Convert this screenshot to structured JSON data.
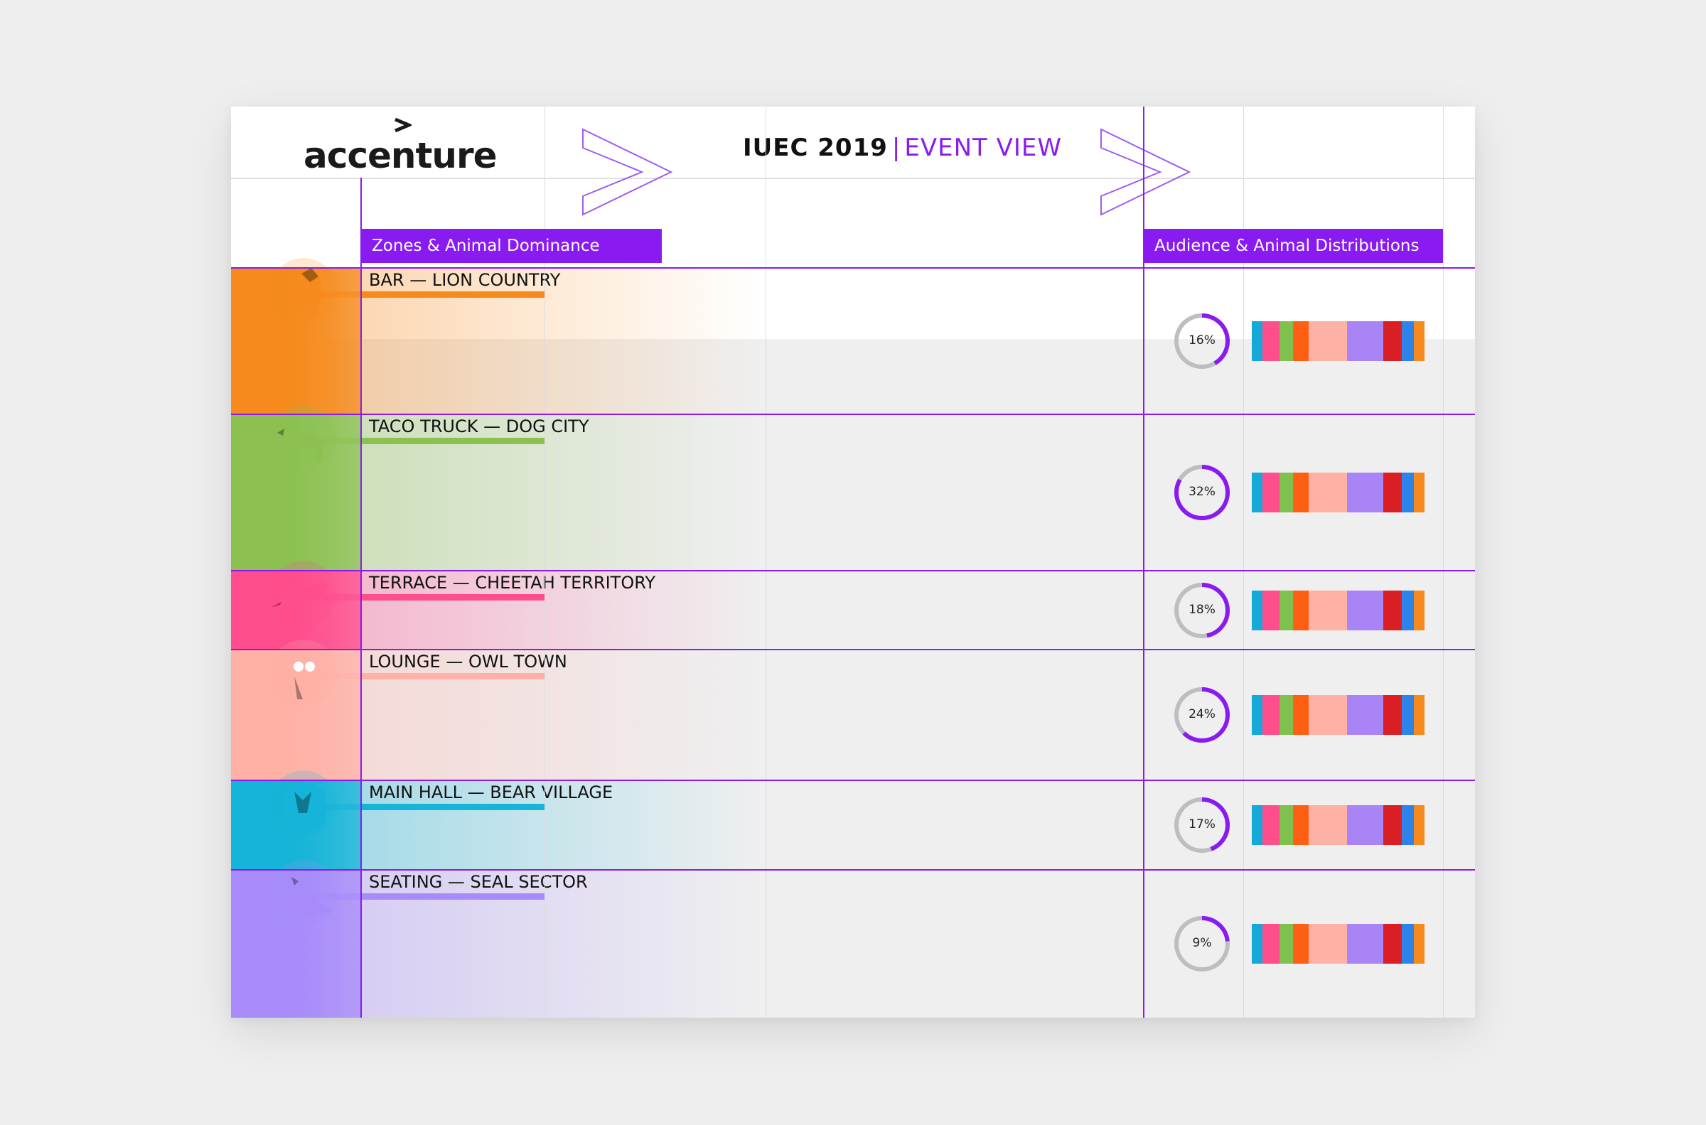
{
  "header": {
    "logo_text": "accenture",
    "title_main": "IUEC 2019",
    "title_separator": "|",
    "title_view": "EVENT VIEW"
  },
  "sections": {
    "zones_label": "Zones & Animal Dominance",
    "audience_label": "Audience & Animal Distributions"
  },
  "colors": {
    "accent": "#8a1bf0",
    "distribution_palette": [
      "#15a9d8",
      "#ff4d8d",
      "#7fc04f",
      "#ff5f13",
      "#ffb1a6",
      "#a884f7",
      "#d91f24",
      "#2d83ea",
      "#f68a1c"
    ]
  },
  "distribution_shares": [
    0.06,
    0.1,
    0.08,
    0.09,
    0.22,
    0.21,
    0.11,
    0.07,
    0.06
  ],
  "zones": [
    {
      "label": "BAR — LION COUNTRY",
      "animal_icon": "lion-icon",
      "color": "#f68a1c",
      "percent": "16%",
      "value": 16
    },
    {
      "label": "TACO TRUCK — DOG CITY",
      "animal_icon": "dog-icon",
      "color": "#8cc152",
      "percent": "32%",
      "value": 32
    },
    {
      "label": "TERRACE — CHEETAH TERRITORY",
      "animal_icon": "cheetah-icon",
      "color": "#ff4d8d",
      "percent": "18%",
      "value": 18
    },
    {
      "label": "LOUNGE — OWL TOWN",
      "animal_icon": "owl-icon",
      "color": "#ffb1a6",
      "percent": "24%",
      "value": 24
    },
    {
      "label": "MAIN HALL — BEAR VILLAGE",
      "animal_icon": "bear-icon",
      "color": "#15b4d8",
      "percent": "17%",
      "value": 17
    },
    {
      "label": "SEATING — SEAL SECTOR",
      "animal_icon": "seal-icon",
      "color": "#a78bfa",
      "percent": "9%",
      "value": 9
    }
  ]
}
